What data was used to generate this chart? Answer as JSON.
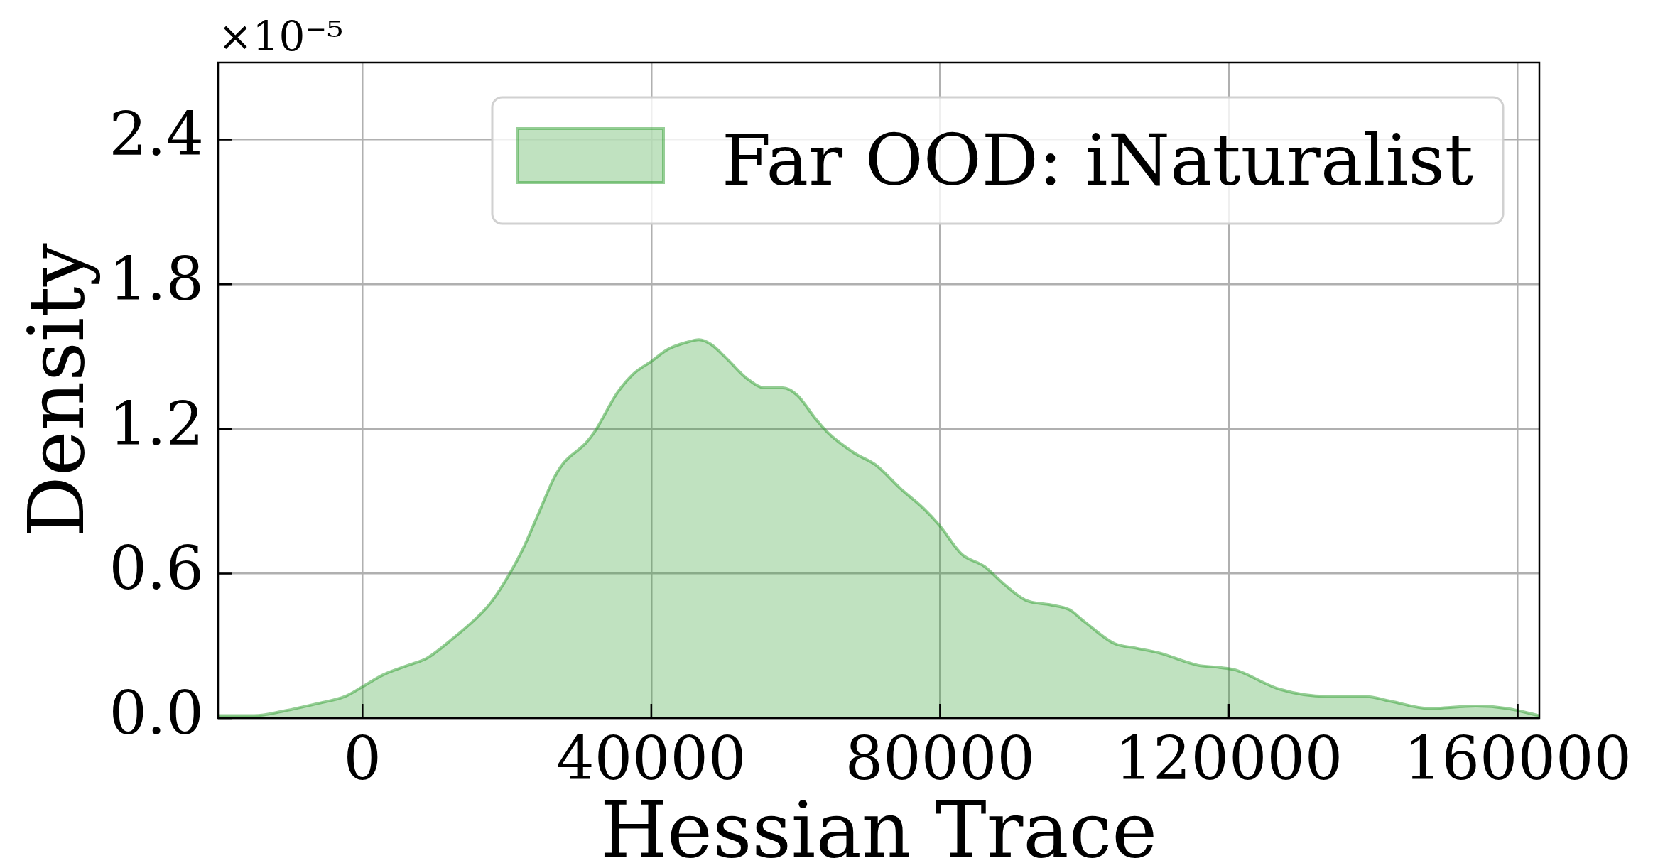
{
  "chart_data": {
    "type": "area",
    "xlabel": "Hessian Trace",
    "ylabel": "Density",
    "annotations": [
      "×10⁻⁵"
    ],
    "x": [
      -20000,
      -15000,
      -10800,
      -6300,
      -2400,
      0,
      2900,
      6400,
      9000,
      12500,
      15600,
      17800,
      20400,
      22200,
      24400,
      26600,
      27900,
      30900,
      32200,
      35300,
      37600,
      40000,
      42300,
      45000,
      46600,
      48300,
      50500,
      53200,
      55800,
      58200,
      60200,
      62800,
      64600,
      68100,
      71100,
      74600,
      77700,
      79900,
      83000,
      86100,
      88700,
      91800,
      95300,
      97900,
      100000,
      104100,
      107200,
      110400,
      115600,
      118700,
      120900,
      127000,
      133600,
      138900,
      142400,
      147700,
      154200,
      158600,
      163000
    ],
    "series": [
      {
        "name": "Far OOD: iNaturalist",
        "color": "#c0e2c0",
        "values": [
          0.01,
          0.01,
          0.03,
          0.06,
          0.09,
          0.13,
          0.18,
          0.22,
          0.25,
          0.33,
          0.41,
          0.48,
          0.6,
          0.7,
          0.85,
          1.0,
          1.06,
          1.14,
          1.19,
          1.35,
          1.43,
          1.48,
          1.53,
          1.56,
          1.57,
          1.55,
          1.49,
          1.41,
          1.37,
          1.37,
          1.34,
          1.24,
          1.18,
          1.1,
          1.05,
          0.95,
          0.87,
          0.8,
          0.68,
          0.63,
          0.56,
          0.49,
          0.47,
          0.45,
          0.4,
          0.31,
          0.29,
          0.27,
          0.22,
          0.21,
          0.2,
          0.12,
          0.09,
          0.09,
          0.07,
          0.04,
          0.05,
          0.04,
          0.01
        ]
      }
    ],
    "xlim": [
      -20000,
      163000
    ],
    "xticks": [
      0,
      40000,
      80000,
      120000,
      160000
    ],
    "ylim": [
      0,
      2.72
    ],
    "yticks": [
      {
        "value": 0,
        "label": "0.0"
      },
      0.6,
      1.2,
      1.8,
      2.4
    ],
    "grid": true,
    "legend": "top right"
  }
}
